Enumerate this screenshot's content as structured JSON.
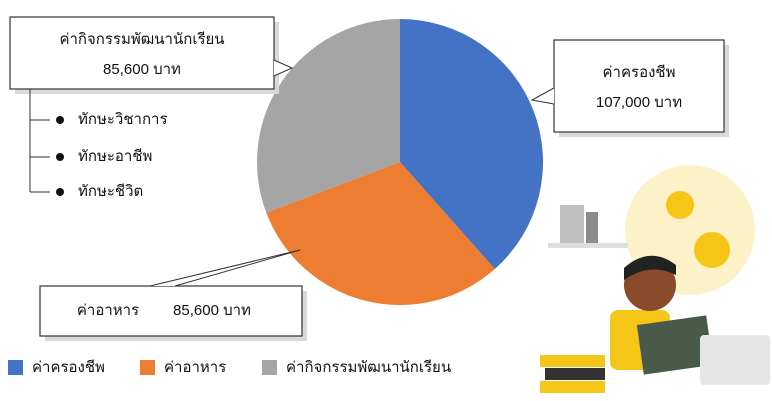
{
  "chart_data": {
    "type": "pie",
    "categories": [
      "ค่าครองชีพ",
      "ค่าอาหาร",
      "ค่ากิจกรรมพัฒนานักเรียน"
    ],
    "values": [
      107000,
      85600,
      85600
    ],
    "value_labels": [
      "107,000 บาท",
      "85,600 บาท",
      "85,600 บาท"
    ],
    "colors": [
      "#4472c4",
      "#ed7d31",
      "#a5a5a5"
    ],
    "annotations": [
      "ทักษะวิชาการ",
      "ทักษะอาชีพ",
      "ทักษะชีวิต"
    ],
    "legend": "bottom-left"
  }
}
